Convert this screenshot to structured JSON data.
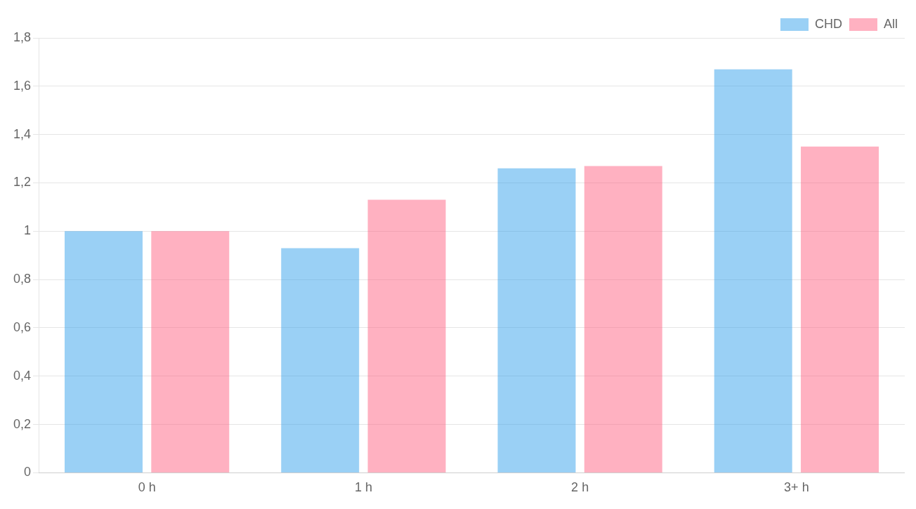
{
  "chart_data": {
    "type": "bar",
    "categories": [
      "0 h",
      "1 h",
      "2 h",
      "3+ h"
    ],
    "series": [
      {
        "name": "CHD",
        "values": [
          1.0,
          0.93,
          1.26,
          1.67
        ]
      },
      {
        "name": "All",
        "values": [
          1.0,
          1.13,
          1.27,
          1.35
        ]
      }
    ],
    "ylim": [
      0,
      1.8
    ],
    "yticks": [
      0,
      {
        "value": 0.2,
        "label": "0,2"
      },
      {
        "value": 0.4,
        "label": "0,4"
      },
      {
        "value": 0.6,
        "label": "0,6"
      },
      {
        "value": 0.8,
        "label": "0,8"
      },
      1,
      {
        "value": 1.2,
        "label": "1,2"
      },
      {
        "value": 1.4,
        "label": "1,4"
      },
      {
        "value": 1.6,
        "label": "1,6"
      },
      {
        "value": 1.8,
        "label": "1,8"
      }
    ],
    "grid": true,
    "legend": "upper right"
  }
}
